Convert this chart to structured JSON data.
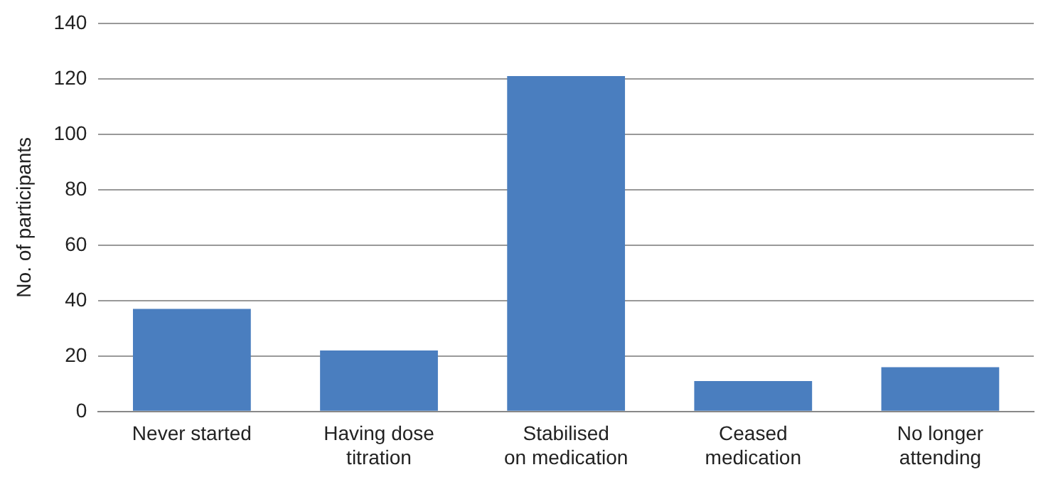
{
  "chart_data": {
    "type": "bar",
    "ylabel": "No. of participants",
    "categories": [
      "Never started",
      "Having dose\ntitration",
      "Stabilised\non medication",
      "Ceased\nmedication",
      "No longer\nattending"
    ],
    "values": [
      37,
      22,
      121,
      11,
      16
    ],
    "color": "#4a7ebf",
    "ylim": [
      0,
      140
    ],
    "yticks": [
      0,
      20,
      40,
      60,
      80,
      100,
      120,
      140
    ],
    "grid": "y",
    "legend": false
  }
}
